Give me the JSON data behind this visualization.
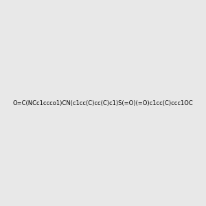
{
  "smiles": "O=C(NCc1ccco1)CN(c1cc(C)cc(C)c1)S(=O)(=O)c1cc(C)ccc1OC",
  "image_size": 300,
  "background_color": "#e8e8e8"
}
